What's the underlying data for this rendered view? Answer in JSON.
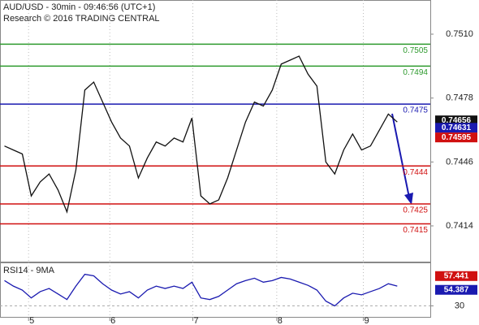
{
  "chart_data": [
    {
      "type": "line",
      "title": "AUD/USD - 30min - 09:46:56 (UTC+1)",
      "subtitle": "Research © 2016 TRADING CENTRAL",
      "color": "#111111",
      "values": [
        0.7454,
        0.7452,
        0.745,
        0.7429,
        0.7436,
        0.744,
        0.7432,
        0.7421,
        0.7442,
        0.7482,
        0.7486,
        0.7476,
        0.7466,
        0.7458,
        0.7454,
        0.7438,
        0.7448,
        0.7456,
        0.7454,
        0.7458,
        0.7456,
        0.7468,
        0.7429,
        0.7425,
        0.7427,
        0.7438,
        0.7452,
        0.7466,
        0.7476,
        0.7474,
        0.7482,
        0.7495,
        0.7497,
        0.7499,
        0.749,
        0.7484,
        0.7446,
        0.744,
        0.7452,
        0.746,
        0.7452,
        0.7454,
        0.7462,
        0.747,
        0.7466
      ],
      "xlim": [
        -0.5,
        47.7
      ],
      "xticks": [
        {
          "value": 2.7,
          "label": "5"
        },
        {
          "value": 11.8,
          "label": "6"
        },
        {
          "value": 21.1,
          "label": "7"
        },
        {
          "value": 30.5,
          "label": "8"
        },
        {
          "value": 40.2,
          "label": "9"
        }
      ],
      "ylim": [
        0.73961,
        0.75271
      ],
      "yticks": [
        {
          "value": 0.751,
          "label": "0.7510"
        },
        0.7478,
        0.7446,
        0.7414
      ],
      "grid": true,
      "levels": [
        {
          "value": 0.7505,
          "color": "#2e9a2e"
        },
        {
          "value": 0.7494,
          "color": "#2e9a2e"
        },
        {
          "value": 0.7475,
          "color": "#1a1ab0"
        },
        {
          "value": 0.7444,
          "color": "#d01010"
        },
        {
          "value": 0.7425,
          "color": "#d01010"
        },
        {
          "value": 0.7415,
          "color": "#d01010"
        }
      ],
      "price_tags": [
        {
          "value": 0.74656,
          "color": "#111111"
        },
        {
          "value": 0.74631,
          "color": "#1a1ab0"
        },
        {
          "value": 0.74595,
          "color": "#d01010"
        }
      ]
    },
    {
      "type": "line",
      "title": "RSI14 - 9MA",
      "color": "#1a1ab0",
      "values": [
        62,
        55,
        50,
        40,
        48,
        52,
        45,
        38,
        55,
        70,
        68,
        58,
        50,
        45,
        48,
        40,
        50,
        55,
        52,
        55,
        52,
        60,
        40,
        38,
        42,
        50,
        58,
        62,
        65,
        60,
        62,
        66,
        64,
        60,
        56,
        50,
        36,
        30,
        40,
        46,
        44,
        48,
        52,
        58,
        55
      ],
      "xlim": [
        -0.5,
        47.7
      ],
      "ylim": [
        15,
        85
      ],
      "yticks": [
        30
      ],
      "price_tags": [
        {
          "value": 57.441,
          "color": "#d01010"
        },
        {
          "value": 54.387,
          "color": "#1a1ab0"
        }
      ]
    }
  ]
}
